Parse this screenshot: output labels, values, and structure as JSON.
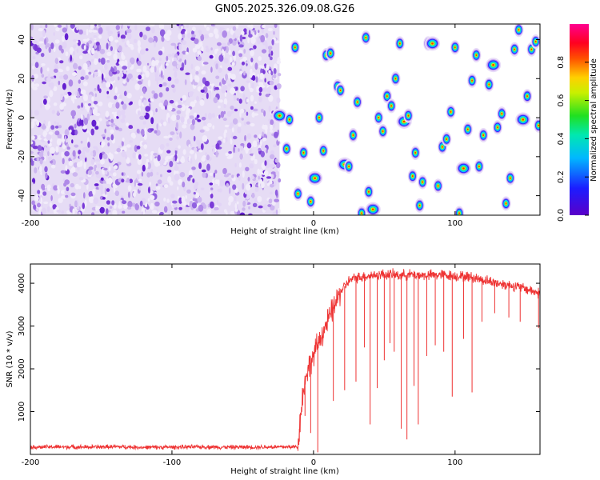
{
  "title": "GN05.2025.326.09.08.G26",
  "chart_data": [
    {
      "type": "heatmap",
      "xlabel": "Height of straight line (km)",
      "ylabel": "Frequency (Hz)",
      "xlim": [
        -200,
        160
      ],
      "ylim": [
        -50,
        48
      ],
      "x_ticks": [
        -200,
        -100,
        0,
        100
      ],
      "y_ticks": [
        -40,
        -20,
        0,
        20,
        40
      ],
      "colorbar": {
        "label": "Normalized spectral amplitude",
        "range": [
          0,
          1
        ],
        "ticks": [
          "0.0",
          "0.2",
          "0.4",
          "0.6",
          "0.8"
        ],
        "colormap": "rainbow (purple-blue-cyan-green-yellow-red-magenta)"
      },
      "description_region": "x < -24 km: dense low-amplitude purple noise; x > -24 km: sparse discrete peaks of amplitude up to ~1",
      "peaks": [
        {
          "x": -24,
          "y": 1
        },
        {
          "x": -19,
          "y": -16
        },
        {
          "x": -17,
          "y": -1
        },
        {
          "x": -13,
          "y": 36
        },
        {
          "x": -11,
          "y": -39
        },
        {
          "x": -7,
          "y": -18
        },
        {
          "x": -2,
          "y": -43
        },
        {
          "x": 1,
          "y": -31
        },
        {
          "x": 4,
          "y": 0
        },
        {
          "x": 7,
          "y": -17
        },
        {
          "x": 9,
          "y": 32
        },
        {
          "x": 12,
          "y": 33
        },
        {
          "x": 17,
          "y": 16
        },
        {
          "x": 19,
          "y": 14
        },
        {
          "x": 22,
          "y": -24
        },
        {
          "x": 25,
          "y": -25
        },
        {
          "x": 28,
          "y": -9
        },
        {
          "x": 31,
          "y": 8
        },
        {
          "x": 34,
          "y": -49
        },
        {
          "x": 37,
          "y": 41
        },
        {
          "x": 39,
          "y": -38
        },
        {
          "x": 42,
          "y": -47
        },
        {
          "x": 46,
          "y": 0
        },
        {
          "x": 49,
          "y": -7
        },
        {
          "x": 52,
          "y": 11
        },
        {
          "x": 55,
          "y": 6
        },
        {
          "x": 58,
          "y": 20
        },
        {
          "x": 61,
          "y": 38
        },
        {
          "x": 64,
          "y": -2
        },
        {
          "x": 67,
          "y": 1
        },
        {
          "x": 70,
          "y": -30
        },
        {
          "x": 72,
          "y": -18
        },
        {
          "x": 75,
          "y": -45
        },
        {
          "x": 77,
          "y": -33
        },
        {
          "x": 81,
          "y": 38
        },
        {
          "x": 84,
          "y": 38
        },
        {
          "x": 88,
          "y": -35
        },
        {
          "x": 91,
          "y": -15
        },
        {
          "x": 94,
          "y": -11
        },
        {
          "x": 97,
          "y": 3
        },
        {
          "x": 100,
          "y": 36
        },
        {
          "x": 103,
          "y": -49
        },
        {
          "x": 106,
          "y": -26
        },
        {
          "x": 109,
          "y": -6
        },
        {
          "x": 112,
          "y": 19
        },
        {
          "x": 115,
          "y": 32
        },
        {
          "x": 117,
          "y": -25
        },
        {
          "x": 120,
          "y": -9
        },
        {
          "x": 124,
          "y": 17
        },
        {
          "x": 127,
          "y": 27
        },
        {
          "x": 130,
          "y": -5
        },
        {
          "x": 133,
          "y": 2
        },
        {
          "x": 136,
          "y": -44
        },
        {
          "x": 139,
          "y": -31
        },
        {
          "x": 142,
          "y": 35
        },
        {
          "x": 145,
          "y": 45
        },
        {
          "x": 148,
          "y": -1
        },
        {
          "x": 151,
          "y": 11
        },
        {
          "x": 154,
          "y": 35
        },
        {
          "x": 157,
          "y": 39
        },
        {
          "x": 159,
          "y": -4
        }
      ]
    },
    {
      "type": "line",
      "xlabel": "Height of straight line (km)",
      "ylabel": "SNR (10 * v/v)",
      "xlim": [
        -200,
        160
      ],
      "ylim": [
        0,
        4450
      ],
      "x_ticks": [
        -200,
        -100,
        0,
        100
      ],
      "y_ticks": [
        1000,
        2000,
        3000,
        4000
      ],
      "series": [
        {
          "color": "#ee3333",
          "x": [
            -200,
            -180,
            -160,
            -140,
            -120,
            -100,
            -80,
            -60,
            -40,
            -20,
            -11,
            -10,
            -8,
            -5,
            0,
            5,
            10,
            15,
            20,
            25,
            30,
            40,
            50,
            60,
            70,
            80,
            90,
            100,
            110,
            120,
            130,
            140,
            150,
            160
          ],
          "y": [
            170,
            175,
            170,
            180,
            165,
            170,
            175,
            170,
            172,
            175,
            180,
            600,
            1300,
            1900,
            2300,
            2750,
            3100,
            3500,
            3850,
            4050,
            4130,
            4180,
            4210,
            4190,
            4200,
            4180,
            4200,
            4170,
            4150,
            4080,
            4000,
            3950,
            3870,
            3760
          ]
        }
      ],
      "dips": [
        {
          "x": -10,
          "y": 300
        },
        {
          "x": -6,
          "y": 900
        },
        {
          "x": -2,
          "y": 500
        },
        {
          "x": 3,
          "y": 50
        },
        {
          "x": 14,
          "y": 1250
        },
        {
          "x": 22,
          "y": 1500
        },
        {
          "x": 30,
          "y": 1700
        },
        {
          "x": 36,
          "y": 2500
        },
        {
          "x": 40,
          "y": 700
        },
        {
          "x": 45,
          "y": 1550
        },
        {
          "x": 50,
          "y": 2200
        },
        {
          "x": 54,
          "y": 2600
        },
        {
          "x": 57,
          "y": 2400
        },
        {
          "x": 62,
          "y": 600
        },
        {
          "x": 66,
          "y": 350
        },
        {
          "x": 71,
          "y": 1600
        },
        {
          "x": 74,
          "y": 700
        },
        {
          "x": 80,
          "y": 2300
        },
        {
          "x": 86,
          "y": 2550
        },
        {
          "x": 92,
          "y": 2400
        },
        {
          "x": 98,
          "y": 1350
        },
        {
          "x": 106,
          "y": 2700
        },
        {
          "x": 112,
          "y": 1450
        },
        {
          "x": 119,
          "y": 3100
        },
        {
          "x": 128,
          "y": 3300
        },
        {
          "x": 138,
          "y": 3200
        },
        {
          "x": 146,
          "y": 3100
        },
        {
          "x": 159,
          "y": 2950
        }
      ]
    }
  ]
}
